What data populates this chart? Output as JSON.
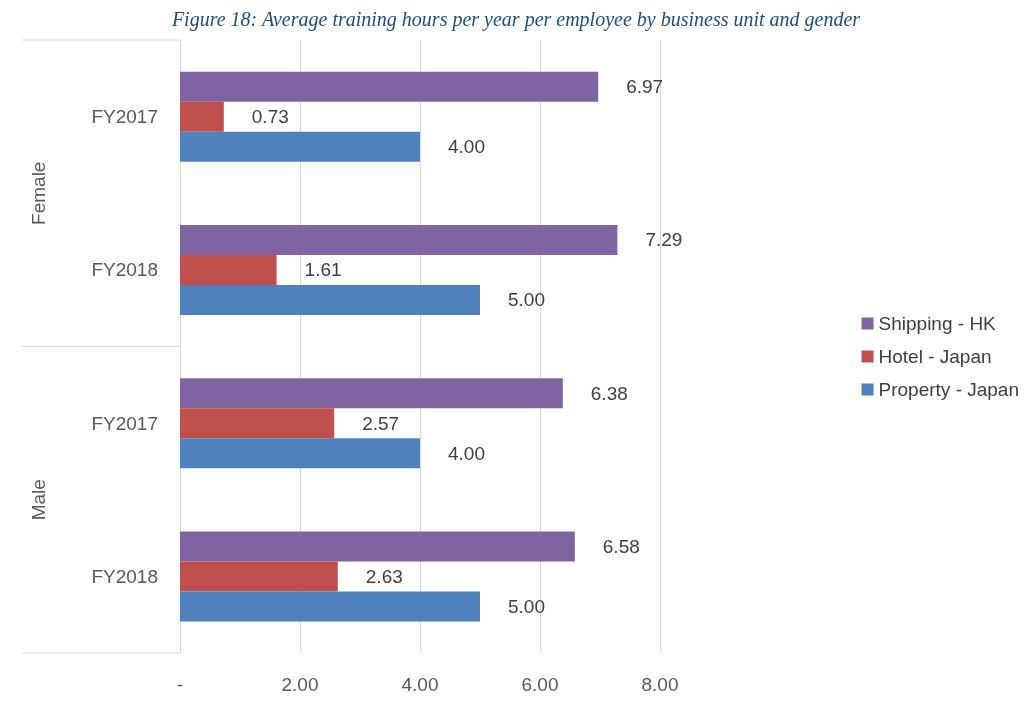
{
  "chart_data": {
    "type": "bar",
    "orientation": "horizontal",
    "title": "Figure 18: Average training hours per year per employee by business unit and gender",
    "categories": [
      "FY2017",
      "FY2018",
      "FY2017",
      "FY2018"
    ],
    "annotations": [
      "Female",
      "Male"
    ],
    "series": [
      {
        "name": "Shipping - HK",
        "color": "#8064a2",
        "values": [
          6.97,
          7.29,
          6.38,
          6.58
        ],
        "value_labels": [
          "6.97",
          "7.29",
          "6.38",
          "6.58"
        ]
      },
      {
        "name": "Hotel - Japan",
        "color": "#c0504d",
        "values": [
          0.73,
          1.61,
          2.57,
          2.63
        ],
        "value_labels": [
          "0.73",
          "1.61",
          "2.57",
          "2.63"
        ]
      },
      {
        "name": "Property - Japan",
        "color": "#4f81bd",
        "values": [
          4.0,
          5.0,
          4.0,
          5.0
        ],
        "value_labels": [
          "4.00",
          "5.00",
          "4.00",
          "5.00"
        ]
      }
    ],
    "xlim": [
      0,
      8
    ],
    "xticks": [
      {
        "value": 0,
        "label": "-"
      },
      {
        "value": 2,
        "label": "2.00"
      },
      {
        "value": 4,
        "label": "4.00"
      },
      {
        "value": 6,
        "label": "6.00"
      },
      {
        "value": 8,
        "label": "8.00"
      }
    ],
    "grid": "x",
    "legend": "right"
  }
}
